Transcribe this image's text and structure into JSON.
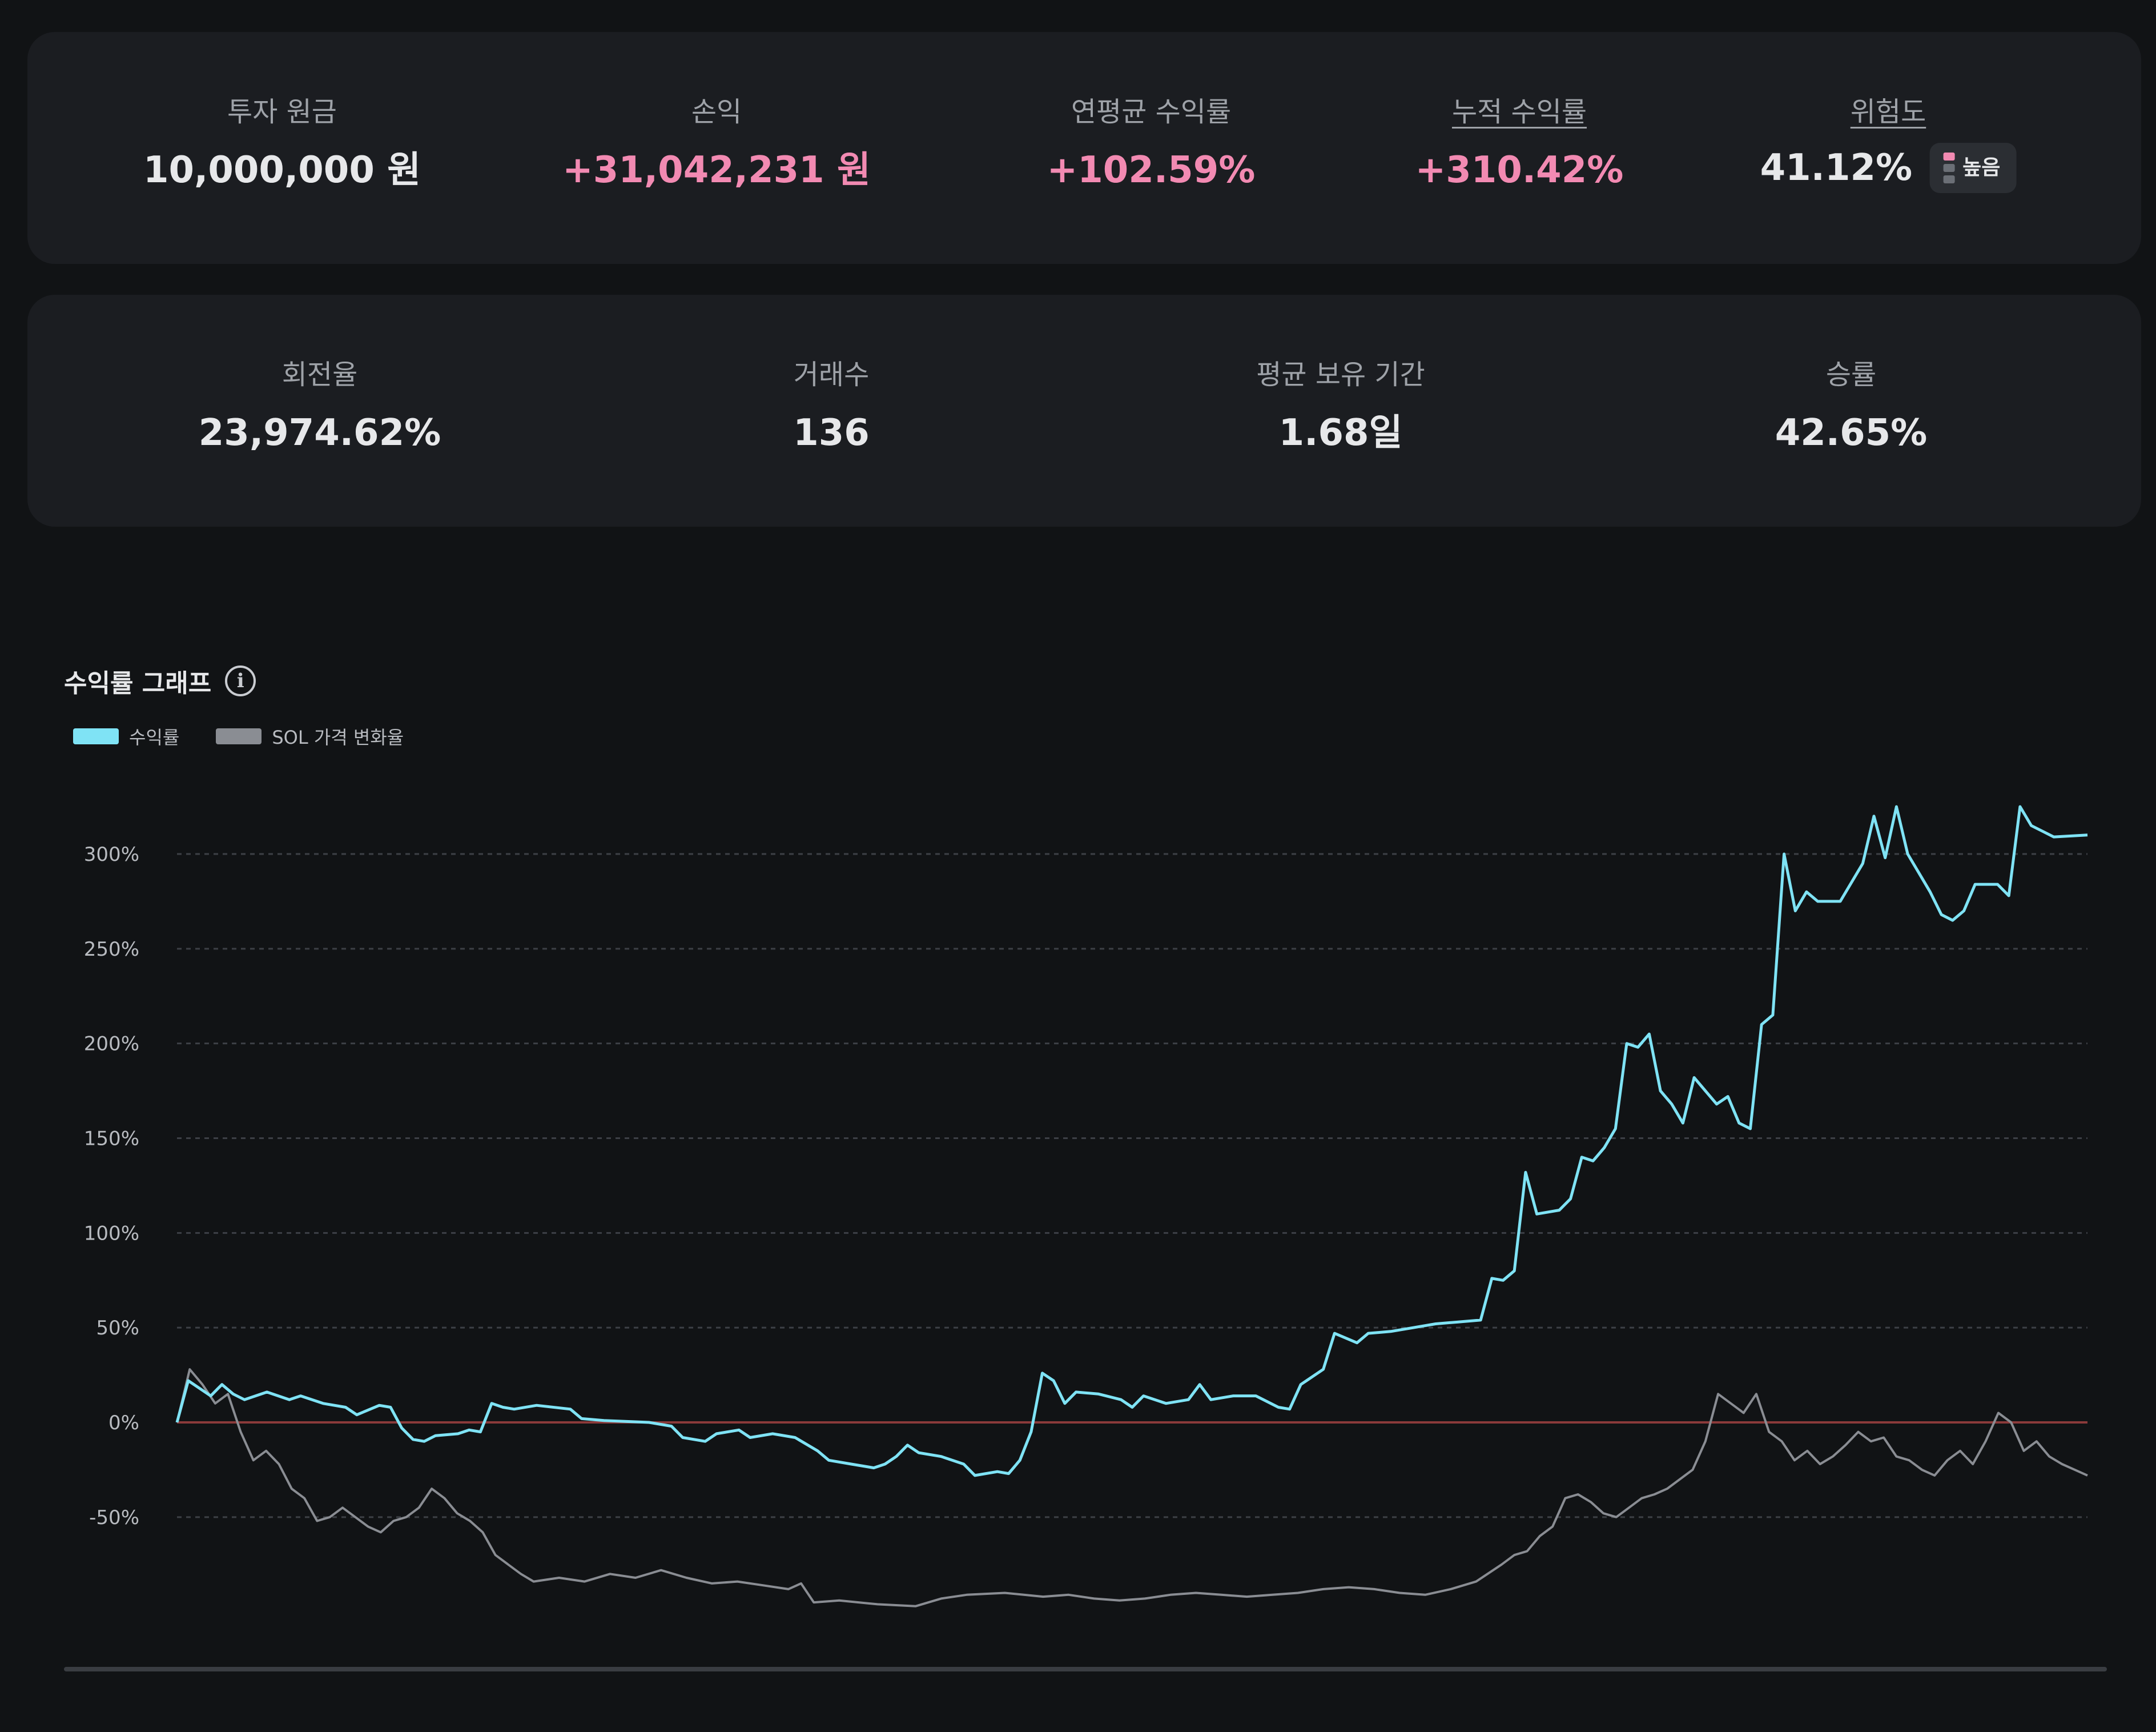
{
  "summary": {
    "principal": {
      "label": "투자 원금",
      "value": "10,000,000 원"
    },
    "pnl": {
      "label": "손익",
      "value": "+31,042,231 원"
    },
    "cagr": {
      "label": "연평균 수익률",
      "value": "+102.59%"
    },
    "cumulative": {
      "label": "누적 수익률",
      "value": "+310.42%"
    },
    "risk": {
      "label": "위험도",
      "value": "41.12%",
      "badge": "높음"
    }
  },
  "stats": {
    "turnover": {
      "label": "회전율",
      "value": "23,974.62%"
    },
    "trades": {
      "label": "거래수",
      "value": "136"
    },
    "holding": {
      "label": "평균 보유 기간",
      "value": "1.68일"
    },
    "winrate": {
      "label": "승률",
      "value": "42.65%"
    }
  },
  "colors": {
    "pink": "#f28ab2",
    "return_line": "#7fe3f5",
    "sol_line": "#8a8d93",
    "zero_line": "#8b3a3a",
    "grid": "#3d4046"
  },
  "chart_data": {
    "type": "line",
    "title": "수익률 그래프",
    "ylabel": "",
    "xlabel": "",
    "ylim": [
      -95,
      340
    ],
    "yticks": [
      300,
      250,
      200,
      150,
      100,
      50,
      0,
      -50
    ],
    "ytick_labels": [
      "300%",
      "250%",
      "200%",
      "150%",
      "100%",
      "50%",
      "0%",
      "-50%"
    ],
    "grid": true,
    "legend": "top-left",
    "series": [
      {
        "name": "수익률",
        "color": "#7fe3f5",
        "points": [
          [
            0,
            0
          ],
          [
            1,
            22
          ],
          [
            2,
            18
          ],
          [
            3,
            14
          ],
          [
            4,
            20
          ],
          [
            5,
            15
          ],
          [
            6,
            12
          ],
          [
            8,
            16
          ],
          [
            10,
            12
          ],
          [
            11,
            14
          ],
          [
            13,
            10
          ],
          [
            15,
            8
          ],
          [
            16,
            4
          ],
          [
            18,
            9
          ],
          [
            19,
            8
          ],
          [
            20,
            -3
          ],
          [
            21,
            -9
          ],
          [
            22,
            -10
          ],
          [
            23,
            -7
          ],
          [
            25,
            -6
          ],
          [
            26,
            -4
          ],
          [
            27,
            -5
          ],
          [
            28,
            10
          ],
          [
            29,
            8
          ],
          [
            30,
            7
          ],
          [
            32,
            9
          ],
          [
            35,
            7
          ],
          [
            36,
            2
          ],
          [
            38,
            1
          ],
          [
            42,
            0
          ],
          [
            44,
            -2
          ],
          [
            45,
            -8
          ],
          [
            47,
            -10
          ],
          [
            48,
            -6
          ],
          [
            50,
            -4
          ],
          [
            51,
            -8
          ],
          [
            53,
            -6
          ],
          [
            55,
            -8
          ],
          [
            57,
            -15
          ],
          [
            58,
            -20
          ],
          [
            60,
            -22
          ],
          [
            62,
            -24
          ],
          [
            63,
            -22
          ],
          [
            64,
            -18
          ],
          [
            65,
            -12
          ],
          [
            66,
            -16
          ],
          [
            68,
            -18
          ],
          [
            70,
            -22
          ],
          [
            71,
            -28
          ],
          [
            73,
            -26
          ],
          [
            74,
            -27
          ],
          [
            75,
            -20
          ],
          [
            76,
            -5
          ],
          [
            77,
            26
          ],
          [
            78,
            22
          ],
          [
            79,
            10
          ],
          [
            80,
            16
          ],
          [
            82,
            15
          ],
          [
            84,
            12
          ],
          [
            85,
            8
          ],
          [
            86,
            14
          ],
          [
            88,
            10
          ],
          [
            90,
            12
          ],
          [
            91,
            20
          ],
          [
            92,
            12
          ],
          [
            94,
            14
          ],
          [
            96,
            14
          ],
          [
            98,
            8
          ],
          [
            99,
            7
          ],
          [
            100,
            20
          ],
          [
            102,
            28
          ],
          [
            103,
            47
          ],
          [
            105,
            42
          ],
          [
            106,
            47
          ],
          [
            108,
            48
          ],
          [
            110,
            50
          ],
          [
            112,
            52
          ],
          [
            114,
            53
          ],
          [
            116,
            54
          ],
          [
            117,
            76
          ],
          [
            118,
            75
          ],
          [
            119,
            80
          ],
          [
            120,
            132
          ],
          [
            121,
            110
          ],
          [
            123,
            112
          ],
          [
            124,
            118
          ],
          [
            125,
            140
          ],
          [
            126,
            138
          ],
          [
            127,
            145
          ],
          [
            128,
            155
          ],
          [
            129,
            200
          ],
          [
            130,
            198
          ],
          [
            131,
            205
          ],
          [
            132,
            175
          ],
          [
            133,
            168
          ],
          [
            134,
            158
          ],
          [
            135,
            182
          ],
          [
            136,
            175
          ],
          [
            137,
            168
          ],
          [
            138,
            172
          ],
          [
            139,
            158
          ],
          [
            140,
            155
          ],
          [
            141,
            210
          ],
          [
            142,
            215
          ],
          [
            143,
            300
          ],
          [
            144,
            270
          ],
          [
            145,
            280
          ],
          [
            146,
            275
          ],
          [
            148,
            275
          ],
          [
            150,
            295
          ],
          [
            151,
            320
          ],
          [
            152,
            298
          ],
          [
            153,
            325
          ],
          [
            154,
            300
          ],
          [
            155,
            290
          ],
          [
            156,
            280
          ],
          [
            157,
            268
          ],
          [
            158,
            265
          ],
          [
            159,
            270
          ],
          [
            160,
            284
          ],
          [
            162,
            284
          ],
          [
            163,
            278
          ],
          [
            164,
            325
          ],
          [
            165,
            315
          ],
          [
            166,
            312
          ],
          [
            167,
            309
          ],
          [
            170,
            310
          ]
        ]
      },
      {
        "name": "SOL 가격 변화율",
        "color": "#8a8d93",
        "points": [
          [
            0,
            0
          ],
          [
            1,
            28
          ],
          [
            2,
            20
          ],
          [
            3,
            10
          ],
          [
            4,
            15
          ],
          [
            5,
            -5
          ],
          [
            6,
            -20
          ],
          [
            7,
            -15
          ],
          [
            8,
            -22
          ],
          [
            9,
            -35
          ],
          [
            10,
            -40
          ],
          [
            11,
            -52
          ],
          [
            12,
            -50
          ],
          [
            13,
            -45
          ],
          [
            14,
            -50
          ],
          [
            15,
            -55
          ],
          [
            16,
            -58
          ],
          [
            17,
            -52
          ],
          [
            18,
            -50
          ],
          [
            19,
            -45
          ],
          [
            20,
            -35
          ],
          [
            21,
            -40
          ],
          [
            22,
            -48
          ],
          [
            23,
            -52
          ],
          [
            24,
            -58
          ],
          [
            25,
            -70
          ],
          [
            26,
            -75
          ],
          [
            27,
            -80
          ],
          [
            28,
            -84
          ],
          [
            30,
            -82
          ],
          [
            32,
            -84
          ],
          [
            34,
            -80
          ],
          [
            36,
            -82
          ],
          [
            38,
            -78
          ],
          [
            40,
            -82
          ],
          [
            42,
            -85
          ],
          [
            44,
            -84
          ],
          [
            46,
            -86
          ],
          [
            48,
            -88
          ],
          [
            49,
            -85
          ],
          [
            50,
            -95
          ],
          [
            52,
            -94
          ],
          [
            55,
            -96
          ],
          [
            58,
            -97
          ],
          [
            60,
            -93
          ],
          [
            62,
            -91
          ],
          [
            65,
            -90
          ],
          [
            68,
            -92
          ],
          [
            70,
            -91
          ],
          [
            72,
            -93
          ],
          [
            74,
            -94
          ],
          [
            76,
            -93
          ],
          [
            78,
            -91
          ],
          [
            80,
            -90
          ],
          [
            82,
            -91
          ],
          [
            84,
            -92
          ],
          [
            86,
            -91
          ],
          [
            88,
            -90
          ],
          [
            90,
            -88
          ],
          [
            92,
            -87
          ],
          [
            94,
            -88
          ],
          [
            96,
            -90
          ],
          [
            98,
            -91
          ],
          [
            100,
            -88
          ],
          [
            102,
            -84
          ],
          [
            104,
            -75
          ],
          [
            105,
            -70
          ],
          [
            106,
            -68
          ],
          [
            107,
            -60
          ],
          [
            108,
            -55
          ],
          [
            109,
            -40
          ],
          [
            110,
            -38
          ],
          [
            111,
            -42
          ],
          [
            112,
            -48
          ],
          [
            113,
            -50
          ],
          [
            114,
            -45
          ],
          [
            115,
            -40
          ],
          [
            116,
            -38
          ],
          [
            117,
            -35
          ],
          [
            118,
            -30
          ],
          [
            119,
            -25
          ],
          [
            120,
            -10
          ],
          [
            121,
            15
          ],
          [
            122,
            10
          ],
          [
            123,
            5
          ],
          [
            124,
            15
          ],
          [
            125,
            -5
          ],
          [
            126,
            -10
          ],
          [
            127,
            -20
          ],
          [
            128,
            -15
          ],
          [
            129,
            -22
          ],
          [
            130,
            -18
          ],
          [
            131,
            -12
          ],
          [
            132,
            -5
          ],
          [
            133,
            -10
          ],
          [
            134,
            -8
          ],
          [
            135,
            -18
          ],
          [
            136,
            -20
          ],
          [
            137,
            -25
          ],
          [
            138,
            -28
          ],
          [
            139,
            -20
          ],
          [
            140,
            -15
          ],
          [
            141,
            -22
          ],
          [
            142,
            -10
          ],
          [
            143,
            5
          ],
          [
            144,
            0
          ],
          [
            145,
            -15
          ],
          [
            146,
            -10
          ],
          [
            147,
            -18
          ],
          [
            148,
            -22
          ],
          [
            149,
            -25
          ],
          [
            150,
            -28
          ]
        ]
      }
    ]
  }
}
